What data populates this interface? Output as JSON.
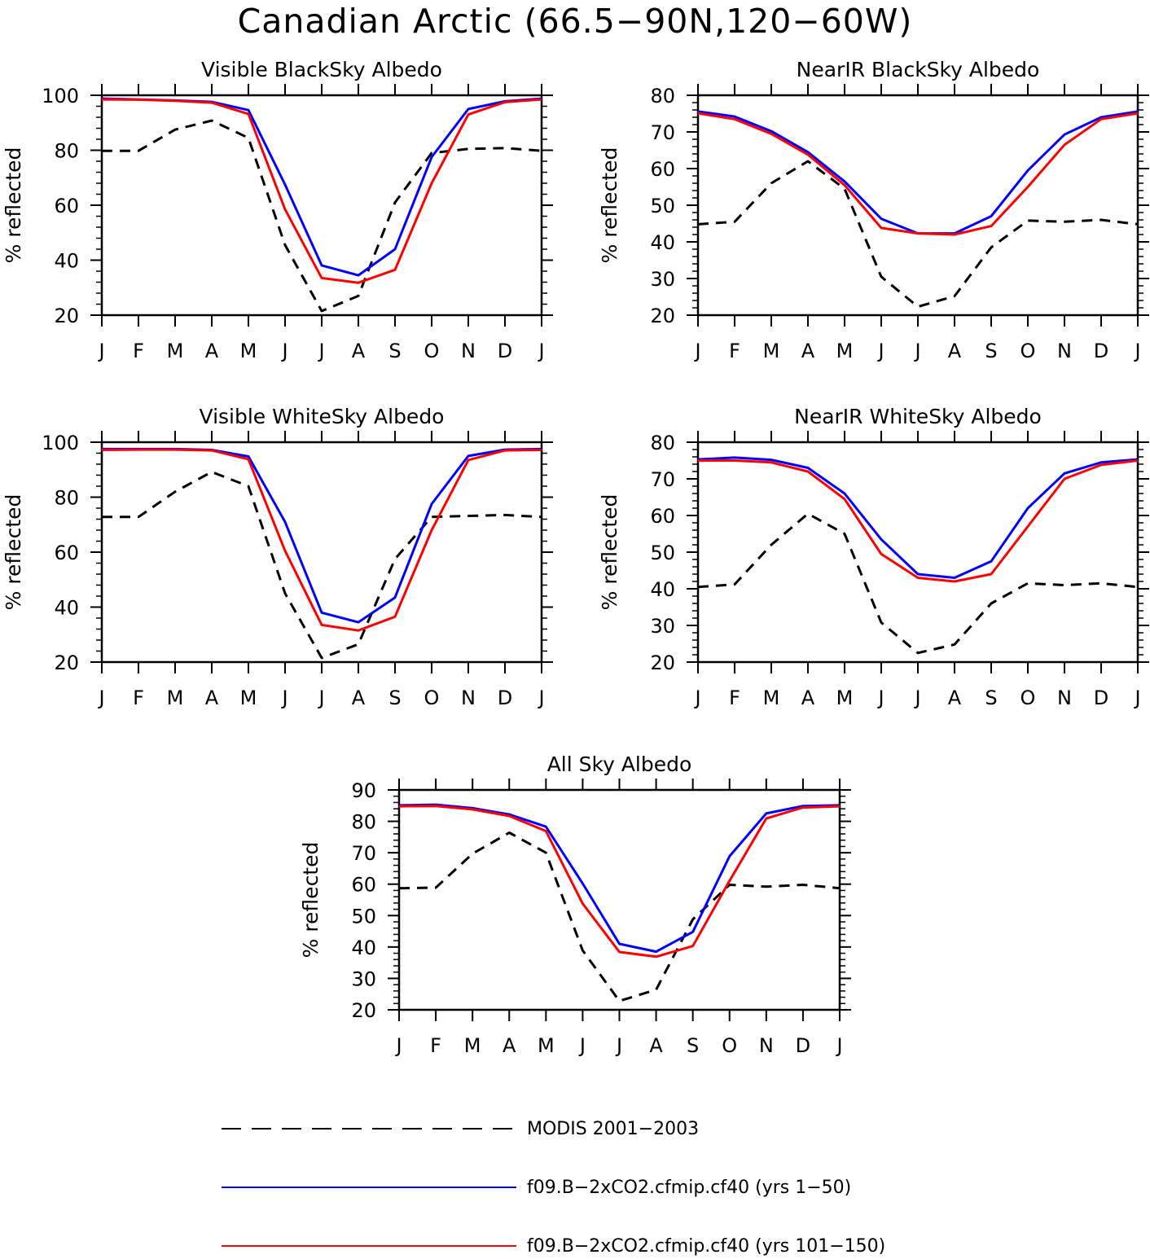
{
  "title": "Canadian Arctic (66.5−90N,120−60W)",
  "colors": {
    "modis": "#000000",
    "run1": "#0000ff",
    "run2": "#ff0000"
  },
  "legend": [
    {
      "key": "modis",
      "label": "MODIS 2001−2003",
      "style": "dashed"
    },
    {
      "key": "run1",
      "label": "f09.B−2xCO2.cfmip.cf40 (yrs 1−50)",
      "style": "solid"
    },
    {
      "key": "run2",
      "label": "f09.B−2xCO2.cfmip.cf40 (yrs 101−150)",
      "style": "solid"
    }
  ],
  "chart_data": [
    {
      "type": "line",
      "title": "Visible BlackSky Albedo",
      "xlabel": "",
      "ylabel": "% reflected",
      "categories": [
        "J",
        "F",
        "M",
        "A",
        "M",
        "J",
        "J",
        "A",
        "S",
        "O",
        "N",
        "D",
        "J"
      ],
      "ylim": [
        20,
        100
      ],
      "yticks": [
        20,
        40,
        60,
        80,
        100
      ],
      "series": [
        {
          "key": "modis",
          "values": [
            79.8,
            79.8,
            87.5,
            90.8,
            84.5,
            45.5,
            21.5,
            27.0,
            61.0,
            79.0,
            80.5,
            80.8,
            79.8
          ]
        },
        {
          "key": "run1",
          "values": [
            98.8,
            98.5,
            98.1,
            97.6,
            94.6,
            67.5,
            38.1,
            34.5,
            44.0,
            77.5,
            95.0,
            97.8,
            98.8
          ]
        },
        {
          "key": "run2",
          "values": [
            98.5,
            98.4,
            98.0,
            97.3,
            93.2,
            58.5,
            33.5,
            31.8,
            36.5,
            68.0,
            93.0,
            97.5,
            98.5
          ]
        }
      ]
    },
    {
      "type": "line",
      "title": "NearIR BlackSky Albedo",
      "xlabel": "",
      "ylabel": "% reflected",
      "categories": [
        "J",
        "F",
        "M",
        "A",
        "M",
        "J",
        "J",
        "A",
        "S",
        "O",
        "N",
        "D",
        "J"
      ],
      "ylim": [
        20,
        80
      ],
      "yticks": [
        20,
        30,
        40,
        50,
        60,
        70,
        80
      ],
      "series": [
        {
          "key": "modis",
          "values": [
            44.8,
            45.5,
            56.0,
            62.0,
            54.5,
            30.5,
            22.3,
            25.2,
            38.5,
            45.8,
            45.5,
            46.0,
            44.8
          ]
        },
        {
          "key": "run1",
          "values": [
            75.6,
            74.2,
            70.2,
            64.5,
            56.5,
            46.3,
            42.3,
            42.3,
            47.0,
            59.5,
            69.3,
            74.0,
            75.6
          ]
        },
        {
          "key": "run2",
          "values": [
            75.1,
            73.5,
            69.5,
            63.8,
            55.5,
            43.8,
            42.3,
            42.0,
            44.3,
            55.0,
            66.5,
            73.5,
            75.1
          ]
        }
      ]
    },
    {
      "type": "line",
      "title": "Visible WhiteSky Albedo",
      "xlabel": "",
      "ylabel": "% reflected",
      "categories": [
        "J",
        "F",
        "M",
        "A",
        "M",
        "J",
        "J",
        "A",
        "S",
        "O",
        "N",
        "D",
        "J"
      ],
      "ylim": [
        20,
        100
      ],
      "yticks": [
        20,
        40,
        60,
        80,
        100
      ],
      "series": [
        {
          "key": "modis",
          "values": [
            72.8,
            72.8,
            82.0,
            89.2,
            84.0,
            45.0,
            21.5,
            26.5,
            57.5,
            72.8,
            73.2,
            73.5,
            72.8
          ]
        },
        {
          "key": "run1",
          "values": [
            97.5,
            97.5,
            97.5,
            97.2,
            94.8,
            71.0,
            38.0,
            34.5,
            43.5,
            77.5,
            95.0,
            97.3,
            97.5
          ]
        },
        {
          "key": "run2",
          "values": [
            97.2,
            97.3,
            97.3,
            97.0,
            93.8,
            60.5,
            33.5,
            31.5,
            36.5,
            68.0,
            93.5,
            97.0,
            97.2
          ]
        }
      ]
    },
    {
      "type": "line",
      "title": "NearIR WhiteSky Albedo",
      "xlabel": "",
      "ylabel": "% reflected",
      "categories": [
        "J",
        "F",
        "M",
        "A",
        "M",
        "J",
        "J",
        "A",
        "S",
        "O",
        "N",
        "D",
        "J"
      ],
      "ylim": [
        20,
        80
      ],
      "yticks": [
        20,
        30,
        40,
        50,
        60,
        70,
        80
      ],
      "series": [
        {
          "key": "modis",
          "values": [
            40.5,
            41.2,
            52.0,
            60.5,
            55.0,
            30.8,
            22.5,
            24.8,
            36.0,
            41.5,
            41.0,
            41.5,
            40.5
          ]
        },
        {
          "key": "run1",
          "values": [
            75.3,
            75.8,
            75.2,
            73.0,
            66.0,
            53.5,
            44.0,
            43.0,
            47.5,
            62.0,
            71.5,
            74.5,
            75.3
          ]
        },
        {
          "key": "run2",
          "values": [
            75.0,
            75.0,
            74.5,
            72.0,
            64.5,
            49.5,
            43.0,
            42.0,
            44.0,
            57.0,
            70.0,
            73.8,
            75.0
          ]
        }
      ]
    },
    {
      "type": "line",
      "title": "All Sky Albedo",
      "xlabel": "",
      "ylabel": "% reflected",
      "categories": [
        "J",
        "F",
        "M",
        "A",
        "M",
        "J",
        "J",
        "A",
        "S",
        "O",
        "N",
        "D",
        "J"
      ],
      "ylim": [
        20,
        90
      ],
      "yticks": [
        20,
        30,
        40,
        50,
        60,
        70,
        80,
        90
      ],
      "series": [
        {
          "key": "modis",
          "values": [
            58.7,
            58.9,
            69.7,
            76.4,
            70.0,
            38.9,
            22.8,
            26.4,
            48.8,
            59.8,
            59.2,
            59.8,
            58.7
          ]
        },
        {
          "key": "run1",
          "values": [
            85.1,
            85.3,
            84.2,
            82.2,
            78.3,
            60.2,
            41.0,
            38.5,
            44.8,
            68.9,
            82.5,
            84.9,
            85.1
          ]
        },
        {
          "key": "run2",
          "values": [
            84.8,
            84.9,
            83.8,
            81.7,
            76.9,
            53.8,
            38.4,
            36.9,
            40.3,
            61.1,
            80.9,
            84.4,
            84.8
          ]
        }
      ]
    }
  ]
}
